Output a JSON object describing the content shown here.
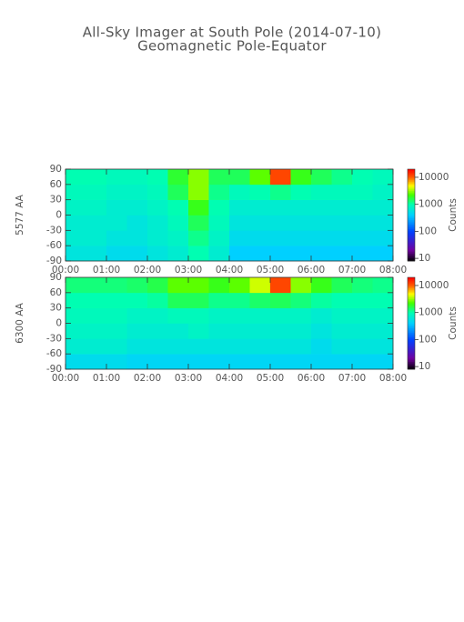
{
  "title": "All-Sky Imager at South Pole (2014-07-10)",
  "subtitle": "Geomagnetic Pole-Equator",
  "chart_data": [
    {
      "type": "heatmap",
      "ylabel": "5577 AA",
      "x_bins": [
        0,
        0.5,
        1,
        1.5,
        2,
        2.5,
        3,
        3.5,
        4,
        4.5,
        5,
        5.5,
        6,
        6.5,
        7,
        7.5,
        8
      ],
      "y_bins": [
        -90,
        -60,
        -30,
        0,
        30,
        60,
        90
      ],
      "values": [
        [
          600,
          600,
          500,
          500,
          600,
          700,
          1000,
          700,
          400,
          400,
          400,
          400,
          400,
          400,
          400,
          400
        ],
        [
          700,
          700,
          600,
          600,
          700,
          800,
          1200,
          800,
          500,
          500,
          500,
          500,
          500,
          500,
          500,
          500
        ],
        [
          700,
          700,
          700,
          600,
          700,
          900,
          1500,
          900,
          600,
          600,
          600,
          600,
          600,
          600,
          600,
          600
        ],
        [
          800,
          800,
          700,
          700,
          800,
          1000,
          2000,
          1000,
          700,
          700,
          700,
          700,
          700,
          700,
          700,
          700
        ],
        [
          900,
          900,
          800,
          800,
          900,
          1500,
          3000,
          1200,
          900,
          1000,
          1200,
          1000,
          900,
          900,
          900,
          800
        ],
        [
          1000,
          1000,
          900,
          900,
          1000,
          1800,
          3000,
          1500,
          1500,
          2500,
          12000,
          2000,
          1500,
          1200,
          1000,
          900
        ]
      ],
      "xlim": [
        0,
        8
      ],
      "xticks": [
        {
          "value": 0,
          "label": "00:00"
        },
        {
          "value": 1,
          "label": "01:00"
        },
        {
          "value": 2,
          "label": "02:00"
        },
        {
          "value": 3,
          "label": "03:00"
        },
        {
          "value": 4,
          "label": "04:00"
        },
        {
          "value": 5,
          "label": "05:00"
        },
        {
          "value": 6,
          "label": "06:00"
        },
        {
          "value": 7,
          "label": "07:00"
        },
        {
          "value": 8,
          "label": "08:00"
        }
      ],
      "ylim": [
        -90,
        90
      ],
      "yticks": [
        90,
        60,
        30,
        0,
        -30,
        -60,
        -90
      ],
      "colorbar": {
        "label": "Counts",
        "log": true,
        "zlim": [
          8,
          20000
        ],
        "zticks": [
          10,
          100,
          1000,
          10000
        ]
      }
    },
    {
      "type": "heatmap",
      "ylabel": "6300 AA",
      "x_bins": [
        0,
        0.5,
        1,
        1.5,
        2,
        2.5,
        3,
        3.5,
        4,
        4.5,
        5,
        5.5,
        6,
        6.5,
        7,
        7.5,
        8
      ],
      "y_bins": [
        -90,
        -60,
        -30,
        0,
        30,
        60,
        90
      ],
      "values": [
        [
          500,
          500,
          500,
          450,
          450,
          450,
          450,
          450,
          450,
          450,
          450,
          450,
          450,
          450,
          450,
          450
        ],
        [
          700,
          700,
          700,
          600,
          600,
          600,
          600,
          600,
          600,
          600,
          600,
          600,
          500,
          600,
          600,
          600
        ],
        [
          800,
          800,
          800,
          700,
          700,
          700,
          800,
          700,
          700,
          700,
          700,
          700,
          600,
          700,
          700,
          700
        ],
        [
          900,
          900,
          900,
          800,
          800,
          900,
          900,
          800,
          800,
          800,
          800,
          800,
          700,
          800,
          800,
          800
        ],
        [
          1000,
          1000,
          1000,
          1000,
          1100,
          1500,
          1500,
          1200,
          1200,
          1400,
          1500,
          1300,
          1100,
          1000,
          1000,
          1000
        ],
        [
          1300,
          1300,
          1300,
          1400,
          1600,
          2500,
          2500,
          2000,
          2500,
          4000,
          12000,
          3000,
          2000,
          1500,
          1300,
          1200
        ]
      ],
      "xlim": [
        0,
        8
      ],
      "xticks": [
        {
          "value": 0,
          "label": "00:00"
        },
        {
          "value": 1,
          "label": "01:00"
        },
        {
          "value": 2,
          "label": "02:00"
        },
        {
          "value": 3,
          "label": "03:00"
        },
        {
          "value": 4,
          "label": "04:00"
        },
        {
          "value": 5,
          "label": "05:00"
        },
        {
          "value": 6,
          "label": "06:00"
        },
        {
          "value": 7,
          "label": "07:00"
        },
        {
          "value": 8,
          "label": "08:00"
        }
      ],
      "ylim": [
        -90,
        90
      ],
      "yticks": [
        90,
        60,
        30,
        0,
        -30,
        -60,
        -90
      ],
      "colorbar": {
        "label": "Counts",
        "log": true,
        "zlim": [
          8,
          20000
        ],
        "zticks": [
          10,
          100,
          1000,
          10000
        ]
      }
    }
  ]
}
